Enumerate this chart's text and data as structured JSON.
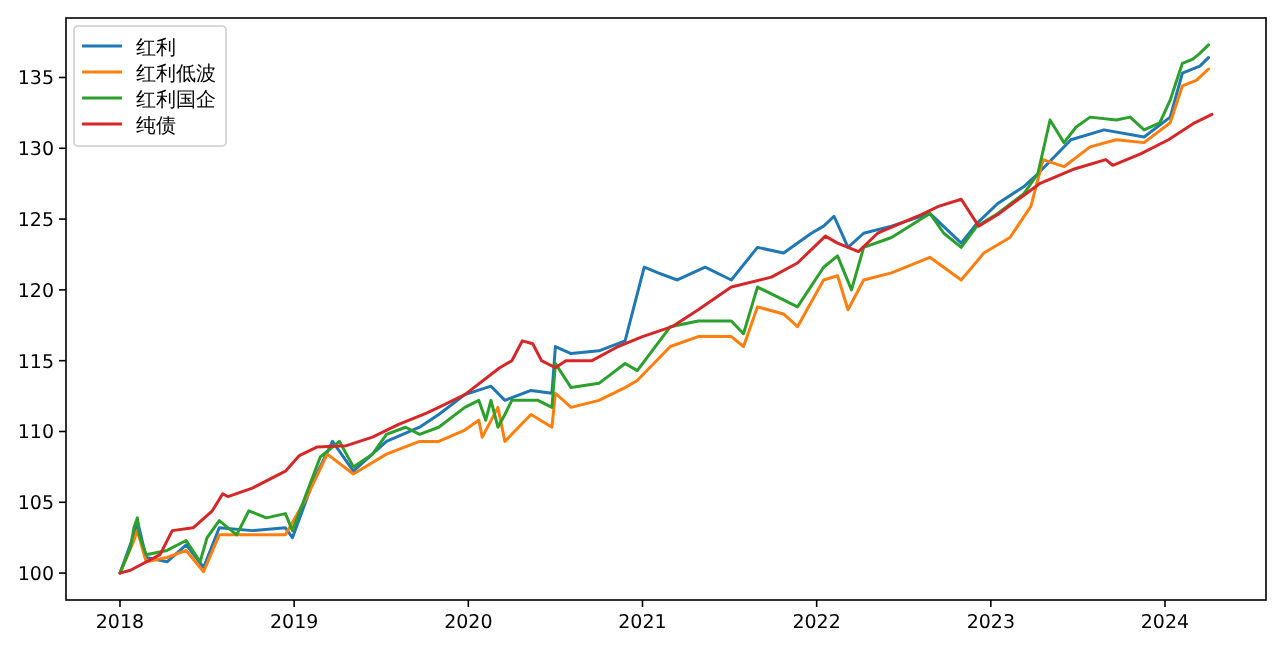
{
  "chart_data": {
    "type": "line",
    "xlim": [
      2017.69,
      2024.58
    ],
    "ylim": [
      98.1,
      139.2
    ],
    "xticks": [
      2018,
      2019,
      2020,
      2021,
      2022,
      2023,
      2024
    ],
    "yticks": [
      100,
      105,
      110,
      115,
      120,
      125,
      130,
      135
    ],
    "grid": false,
    "legend": "top left",
    "marker": "none",
    "line_style": "solid",
    "series": [
      {
        "name": "红利",
        "color": "#1f77b4",
        "x": [
          2018.0,
          2018.08,
          2018.1,
          2018.15,
          2018.27,
          2018.38,
          2018.48,
          2018.57,
          2018.76,
          2018.95,
          2018.99,
          2019.11,
          2019.22,
          2019.34,
          2019.53,
          2019.72,
          2019.83,
          2019.98,
          2020.13,
          2020.21,
          2020.36,
          2020.48,
          2020.5,
          2020.59,
          2020.75,
          2020.9,
          2021.01,
          2021.09,
          2021.2,
          2021.36,
          2021.51,
          2021.66,
          2021.81,
          2021.97,
          2022.04,
          2022.1,
          2022.18,
          2022.27,
          2022.43,
          2022.65,
          2022.83,
          2022.92,
          2023.04,
          2023.19,
          2023.27,
          2023.46,
          2023.65,
          2023.88,
          2024.03,
          2024.1,
          2024.2,
          2024.25
        ],
        "values": [
          100,
          102.7,
          103.7,
          101.1,
          100.8,
          102.0,
          100.4,
          103.2,
          103.0,
          103.2,
          102.5,
          106.5,
          109.3,
          107.2,
          109.3,
          110.3,
          111.2,
          112.6,
          113.2,
          112.2,
          112.9,
          112.7,
          116.0,
          115.5,
          115.7,
          116.4,
          121.6,
          121.2,
          120.7,
          121.6,
          120.7,
          123.0,
          122.6,
          124.0,
          124.5,
          125.2,
          123.0,
          124.0,
          124.5,
          125.4,
          123.3,
          124.7,
          126.1,
          127.3,
          128.2,
          130.6,
          131.3,
          130.8,
          132.2,
          135.3,
          135.8,
          136.4
        ]
      },
      {
        "name": "红利低波",
        "color": "#ff7f0e",
        "x": [
          2018.0,
          2018.08,
          2018.1,
          2018.15,
          2018.27,
          2018.38,
          2018.48,
          2018.57,
          2018.76,
          2018.95,
          2019.07,
          2019.19,
          2019.34,
          2019.53,
          2019.72,
          2019.83,
          2019.98,
          2020.06,
          2020.08,
          2020.17,
          2020.21,
          2020.36,
          2020.48,
          2020.5,
          2020.59,
          2020.75,
          2020.9,
          2020.97,
          2021.16,
          2021.32,
          2021.51,
          2021.58,
          2021.66,
          2021.81,
          2021.89,
          2022.04,
          2022.12,
          2022.18,
          2022.27,
          2022.43,
          2022.65,
          2022.83,
          2022.96,
          2023.11,
          2023.23,
          2023.3,
          2023.42,
          2023.57,
          2023.72,
          2023.88,
          2024.03,
          2024.1,
          2024.18,
          2024.25
        ],
        "values": [
          100,
          102.3,
          103.0,
          100.8,
          101.1,
          101.6,
          100.1,
          102.7,
          102.7,
          102.7,
          105.3,
          108.4,
          107.0,
          108.4,
          109.3,
          109.3,
          110.1,
          110.8,
          109.6,
          111.7,
          109.3,
          111.2,
          110.3,
          112.7,
          111.7,
          112.2,
          113.1,
          113.6,
          116.0,
          116.7,
          116.7,
          116.0,
          118.8,
          118.3,
          117.4,
          120.7,
          121.0,
          118.6,
          120.7,
          121.2,
          122.3,
          120.7,
          122.6,
          123.7,
          125.9,
          129.2,
          128.7,
          130.1,
          130.6,
          130.4,
          131.8,
          134.4,
          134.8,
          135.6
        ]
      },
      {
        "name": "红利国企",
        "color": "#2ca02c",
        "x": [
          2018.0,
          2018.06,
          2018.08,
          2018.1,
          2018.11,
          2018.15,
          2018.27,
          2018.38,
          2018.46,
          2018.5,
          2018.57,
          2018.67,
          2018.74,
          2018.84,
          2018.95,
          2018.99,
          2019.07,
          2019.15,
          2019.26,
          2019.34,
          2019.45,
          2019.53,
          2019.64,
          2019.72,
          2019.83,
          2019.98,
          2020.06,
          2020.1,
          2020.13,
          2020.17,
          2020.21,
          2020.25,
          2020.4,
          2020.48,
          2020.5,
          2020.59,
          2020.75,
          2020.9,
          2020.97,
          2021.16,
          2021.32,
          2021.51,
          2021.58,
          2021.66,
          2021.81,
          2021.89,
          2022.04,
          2022.12,
          2022.2,
          2022.27,
          2022.43,
          2022.65,
          2022.73,
          2022.83,
          2022.92,
          2023.04,
          2023.19,
          2023.27,
          2023.34,
          2023.42,
          2023.49,
          2023.57,
          2023.72,
          2023.8,
          2023.88,
          2023.97,
          2024.03,
          2024.1,
          2024.16,
          2024.2,
          2024.25
        ],
        "values": [
          100,
          101.8,
          103.2,
          103.9,
          102.7,
          101.3,
          101.6,
          102.3,
          100.8,
          102.5,
          103.7,
          102.7,
          104.4,
          103.9,
          104.2,
          103.0,
          105.6,
          108.2,
          109.3,
          107.5,
          108.4,
          109.8,
          110.3,
          109.8,
          110.3,
          111.7,
          112.2,
          110.8,
          112.2,
          110.3,
          111.2,
          112.2,
          112.2,
          111.7,
          114.8,
          113.1,
          113.4,
          114.8,
          114.3,
          117.4,
          117.8,
          117.8,
          116.9,
          120.2,
          119.3,
          118.8,
          121.6,
          122.4,
          120.0,
          123.0,
          123.7,
          125.4,
          124.0,
          123.0,
          124.5,
          125.4,
          126.8,
          128.2,
          132.0,
          130.4,
          131.5,
          132.2,
          132.0,
          132.2,
          131.3,
          131.8,
          133.4,
          136.0,
          136.3,
          136.7,
          137.3
        ]
      },
      {
        "name": "纯债",
        "color": "#d62728",
        "x": [
          2018.0,
          2018.06,
          2018.23,
          2018.3,
          2018.42,
          2018.53,
          2018.59,
          2018.62,
          2018.76,
          2018.95,
          2019.03,
          2019.13,
          2019.3,
          2019.45,
          2019.6,
          2019.76,
          2019.83,
          2019.98,
          2020.18,
          2020.25,
          2020.31,
          2020.37,
          2020.42,
          2020.5,
          2020.56,
          2020.71,
          2020.86,
          2021.0,
          2021.17,
          2021.32,
          2021.51,
          2021.74,
          2021.89,
          2022.05,
          2022.12,
          2022.24,
          2022.35,
          2022.58,
          2022.7,
          2022.83,
          2022.93,
          2023.05,
          2023.28,
          2023.47,
          2023.66,
          2023.7,
          2023.86,
          2024.02,
          2024.17,
          2024.27
        ],
        "values": [
          100,
          100.2,
          101.3,
          103.0,
          103.2,
          104.4,
          105.6,
          105.4,
          106.0,
          107.2,
          108.3,
          108.9,
          109.0,
          109.6,
          110.5,
          111.3,
          111.7,
          112.6,
          114.5,
          115.0,
          116.4,
          116.2,
          115.0,
          114.5,
          115.0,
          115.0,
          116.0,
          116.7,
          117.4,
          118.6,
          120.2,
          120.9,
          121.9,
          123.8,
          123.3,
          122.7,
          124.0,
          125.2,
          125.9,
          126.4,
          124.5,
          125.4,
          127.5,
          128.5,
          129.2,
          128.8,
          129.6,
          130.6,
          131.8,
          132.4
        ]
      }
    ]
  }
}
